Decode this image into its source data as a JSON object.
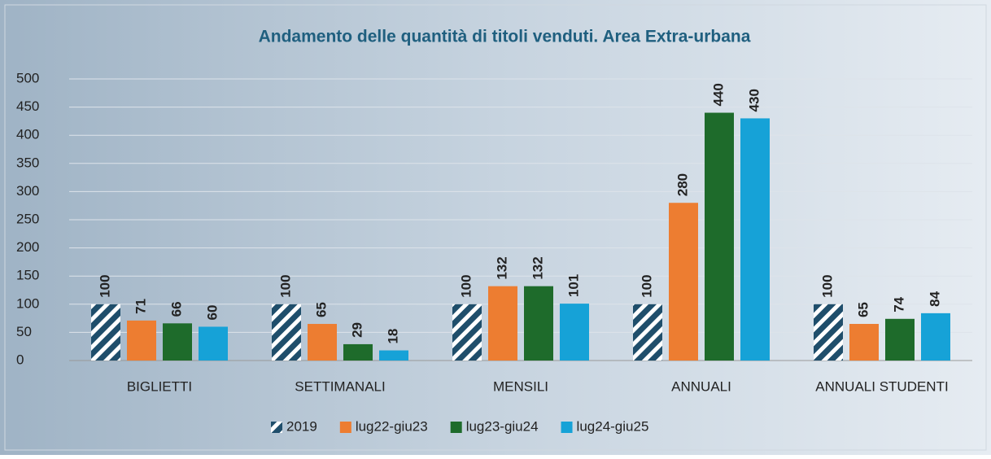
{
  "chart_data": {
    "type": "bar",
    "title": "Andamento delle quantità di titoli venduti. Area Extra-urbana",
    "categories": [
      "BIGLIETTI",
      "SETTIMANALI",
      "MENSILI",
      "ANNUALI",
      "ANNUALI STUDENTI"
    ],
    "series": [
      {
        "name": "2019",
        "color": "#1f4e6b",
        "hatch": true,
        "values": [
          100,
          100,
          100,
          100,
          100
        ]
      },
      {
        "name": "lug22-giu23",
        "color": "#ed7d31",
        "values": [
          71,
          65,
          132,
          280,
          65
        ]
      },
      {
        "name": "lug23-giu24",
        "color": "#1e6b2b",
        "values": [
          66,
          29,
          132,
          440,
          74
        ]
      },
      {
        "name": "lug24-giu25",
        "color": "#16a2d7",
        "values": [
          60,
          18,
          101,
          430,
          84
        ]
      }
    ],
    "ylim": [
      0,
      500
    ],
    "yticks": [
      0,
      50,
      100,
      150,
      200,
      250,
      300,
      350,
      400,
      450,
      500
    ],
    "grid": true,
    "legend": "bottom"
  }
}
